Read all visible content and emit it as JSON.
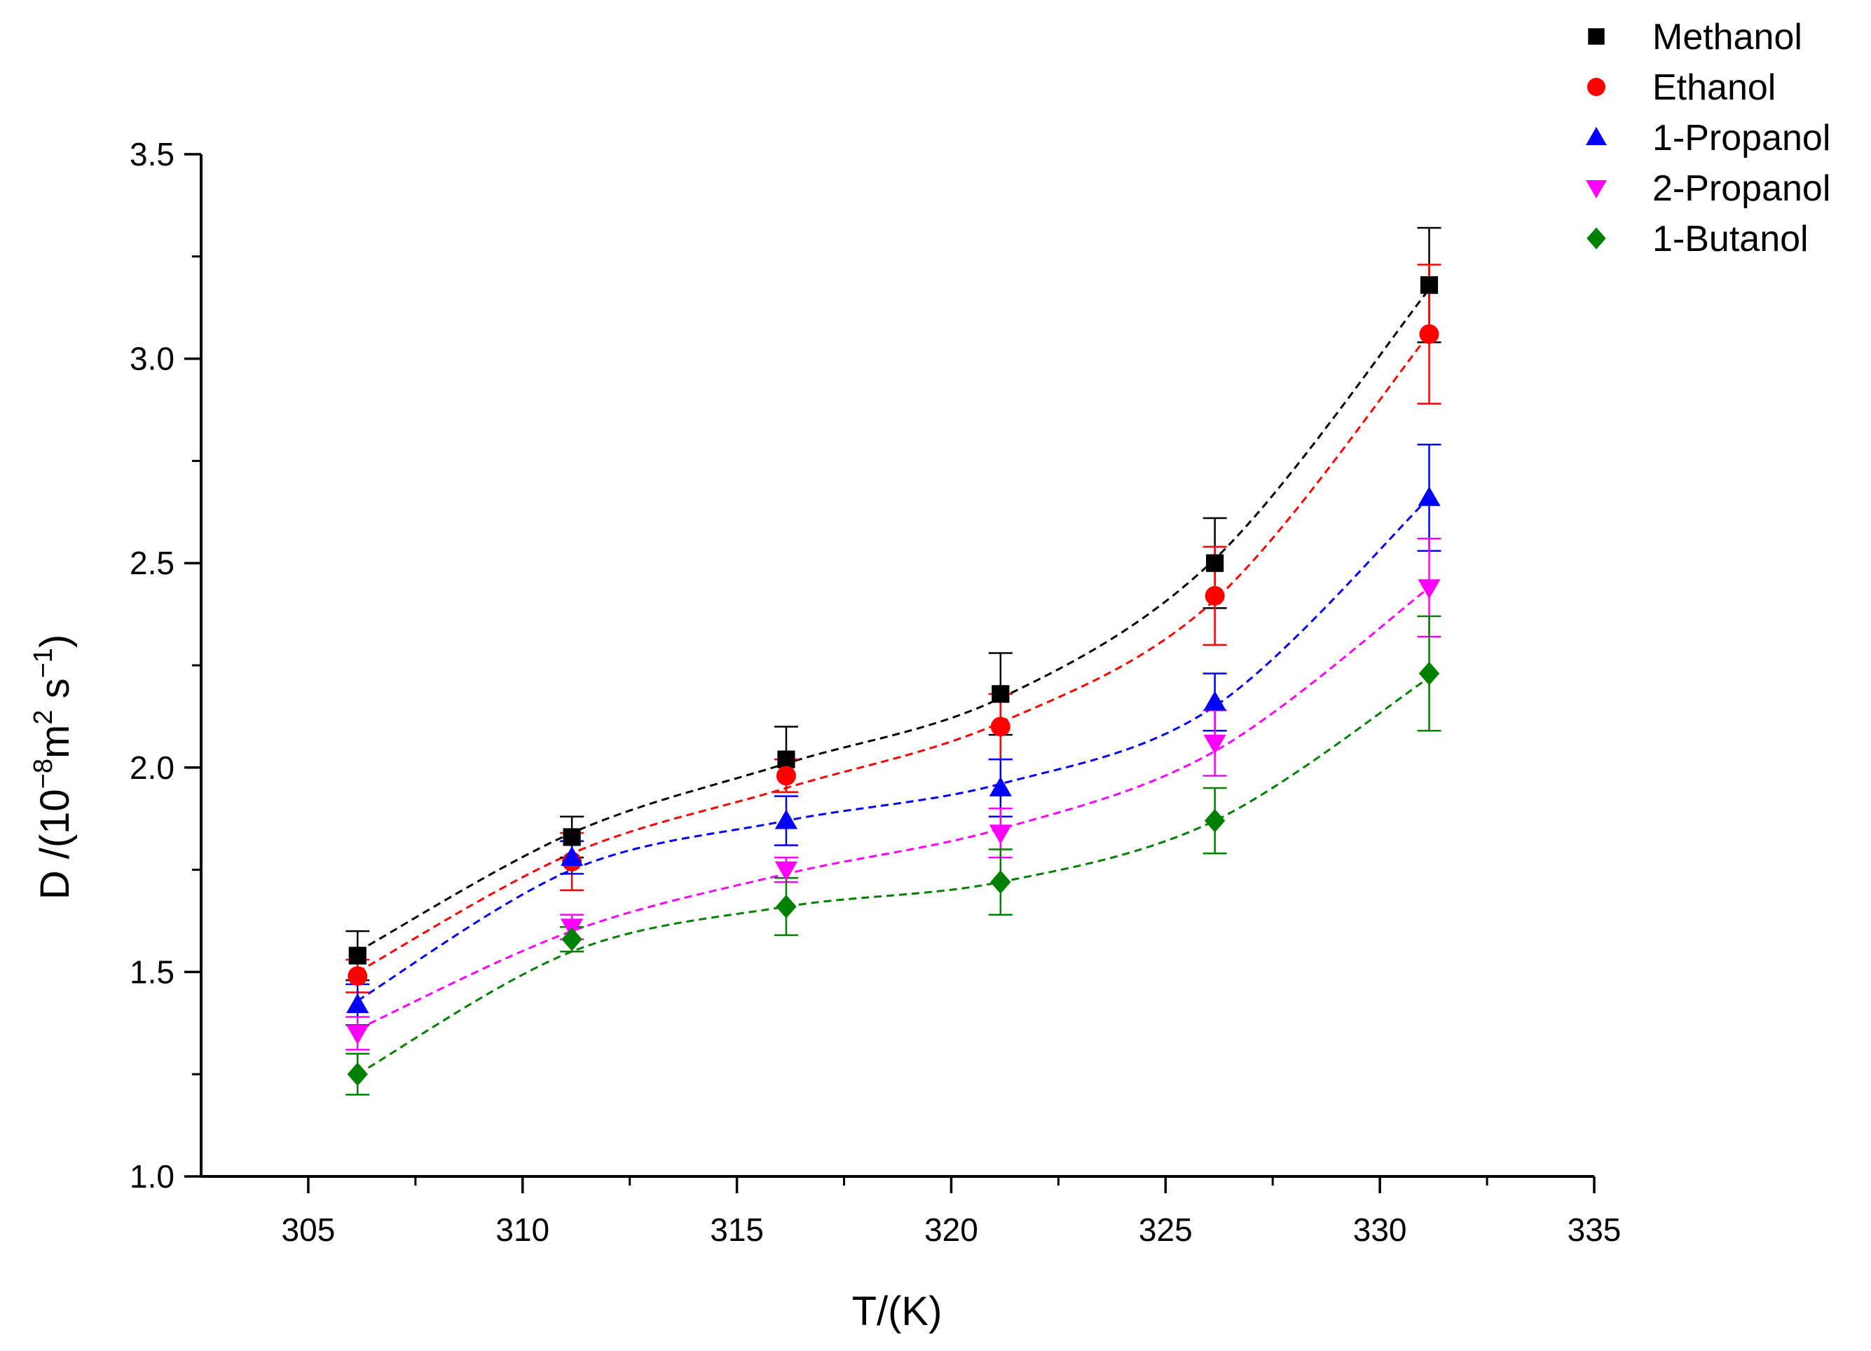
{
  "chart_data": {
    "type": "scatter",
    "title": "",
    "xlabel": "T/(K)",
    "ylabel": "D /(10^-8 m^2 s^-1)",
    "ylabel_parts": {
      "prefix": "D /(10",
      "exp1": "−8",
      "mid": "m",
      "exp2": "2",
      "mid2": " s",
      "exp3": "−1",
      "suffix": ")"
    },
    "xlim": [
      302.5,
      335
    ],
    "ylim": [
      1.0,
      3.5
    ],
    "xticks": [
      305,
      310,
      315,
      320,
      325,
      330,
      335
    ],
    "xtick_labels": [
      "305",
      "310",
      "315",
      "320",
      "325",
      "330",
      "335"
    ],
    "xminor": [
      307.5,
      312.5,
      317.5,
      322.5,
      327.5,
      332.5
    ],
    "yticks": [
      1.0,
      1.5,
      2.0,
      2.5,
      3.0,
      3.5
    ],
    "ytick_labels": [
      "1.0",
      "1.5",
      "2.0",
      "2.5",
      "3.0",
      "3.5"
    ],
    "yminor": [
      1.25,
      1.75,
      2.25,
      2.75,
      3.25
    ],
    "grid": false,
    "legend_position": "top-right",
    "x": [
      306.15,
      311.15,
      316.15,
      321.15,
      326.15,
      331.15
    ],
    "series": [
      {
        "name": "Methanol",
        "marker": "square",
        "color": "#000000",
        "values": [
          1.54,
          1.83,
          2.02,
          2.18,
          2.5,
          3.18
        ],
        "errors": [
          0.06,
          0.05,
          0.08,
          0.1,
          0.11,
          0.14
        ],
        "fit": [
          1.55,
          1.84,
          2.01,
          2.17,
          2.51,
          3.17
        ]
      },
      {
        "name": "Ethanol",
        "marker": "circle",
        "color": "#ff0000",
        "values": [
          1.49,
          1.77,
          1.98,
          2.1,
          2.42,
          3.06
        ],
        "errors": [
          0.04,
          0.07,
          0.04,
          0.08,
          0.12,
          0.17
        ],
        "fit": [
          1.5,
          1.79,
          1.95,
          2.11,
          2.41,
          3.06
        ]
      },
      {
        "name": "1-Propanol",
        "marker": "triangle-up",
        "color": "#0000ff",
        "values": [
          1.42,
          1.78,
          1.87,
          1.95,
          2.16,
          2.66
        ],
        "errors": [
          0.05,
          0.04,
          0.06,
          0.07,
          0.07,
          0.13
        ],
        "fit": [
          1.43,
          1.75,
          1.87,
          1.96,
          2.15,
          2.66
        ]
      },
      {
        "name": "2-Propanol",
        "marker": "triangle-down",
        "color": "#ff00ff",
        "values": [
          1.35,
          1.61,
          1.75,
          1.84,
          2.06,
          2.44
        ],
        "errors": [
          0.04,
          0.03,
          0.03,
          0.06,
          0.08,
          0.12
        ],
        "fit": [
          1.36,
          1.6,
          1.74,
          1.85,
          2.04,
          2.44
        ]
      },
      {
        "name": "1-Butanol",
        "marker": "diamond",
        "color": "#008000",
        "values": [
          1.25,
          1.58,
          1.66,
          1.72,
          1.87,
          2.23
        ],
        "errors": [
          0.05,
          0.03,
          0.07,
          0.08,
          0.08,
          0.14
        ],
        "fit": [
          1.25,
          1.55,
          1.66,
          1.72,
          1.87,
          2.22
        ]
      }
    ]
  }
}
